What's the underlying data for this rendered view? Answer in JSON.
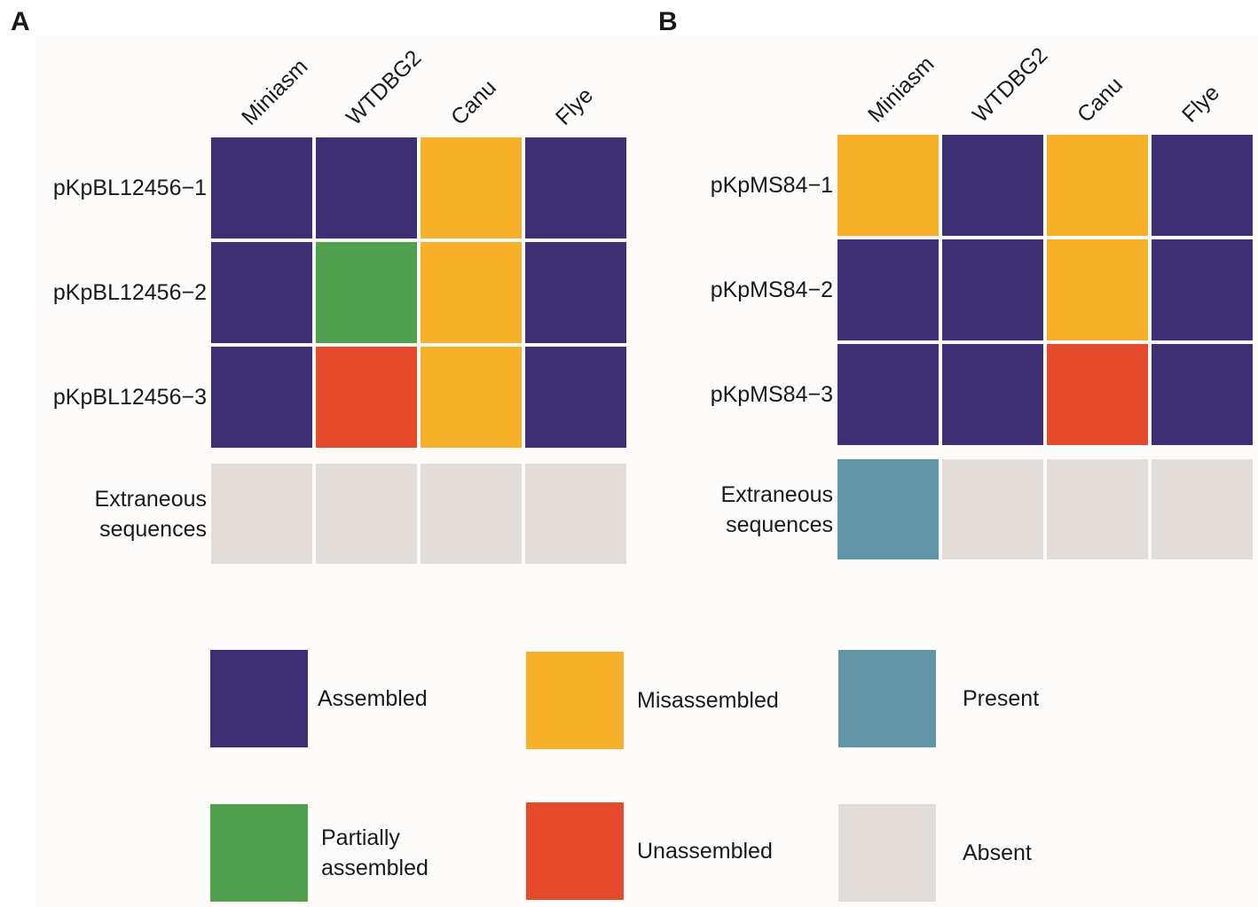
{
  "colors": {
    "Assembled": "#3d2f74",
    "Misassembled": "#f6b02a",
    "Partially assembled": "#4fa04f",
    "Unassembled": "#e64a2c",
    "Present": "#6094a6",
    "Absent": "#e2ddd9"
  },
  "chart_data": [
    {
      "type": "heatmap",
      "panel": "A",
      "columns": [
        "Miniasm",
        "WTDBG2",
        "Canu",
        "Flye"
      ],
      "rows": [
        {
          "label": "pKpBL12456−1",
          "values": [
            "Assembled",
            "Assembled",
            "Misassembled",
            "Assembled"
          ]
        },
        {
          "label": "pKpBL12456−2",
          "values": [
            "Assembled",
            "Partially assembled",
            "Misassembled",
            "Assembled"
          ]
        },
        {
          "label": "pKpBL12456−3",
          "values": [
            "Assembled",
            "Unassembled",
            "Misassembled",
            "Assembled"
          ]
        }
      ],
      "extraneous": {
        "label_line1": "Extraneous",
        "label_line2": "sequences",
        "values": [
          "Absent",
          "Absent",
          "Absent",
          "Absent"
        ]
      }
    },
    {
      "type": "heatmap",
      "panel": "B",
      "columns": [
        "Miniasm",
        "WTDBG2",
        "Canu",
        "Flye"
      ],
      "rows": [
        {
          "label": "pKpMS84−1",
          "values": [
            "Misassembled",
            "Assembled",
            "Misassembled",
            "Assembled"
          ]
        },
        {
          "label": "pKpMS84−2",
          "values": [
            "Assembled",
            "Assembled",
            "Misassembled",
            "Assembled"
          ]
        },
        {
          "label": "pKpMS84−3",
          "values": [
            "Assembled",
            "Assembled",
            "Unassembled",
            "Assembled"
          ]
        }
      ],
      "extraneous": {
        "label_line1": "Extraneous",
        "label_line2": "sequences",
        "values": [
          "Present",
          "Absent",
          "Absent",
          "Absent"
        ]
      }
    }
  ],
  "legend": [
    {
      "key": "Assembled",
      "line1": "Assembled",
      "line2": ""
    },
    {
      "key": "Misassembled",
      "line1": "Misassembled",
      "line2": ""
    },
    {
      "key": "Present",
      "line1": "Present",
      "line2": ""
    },
    {
      "key": "Partially assembled",
      "line1": "Partially",
      "line2": "assembled"
    },
    {
      "key": "Unassembled",
      "line1": "Unassembled",
      "line2": ""
    },
    {
      "key": "Absent",
      "line1": "Absent",
      "line2": ""
    }
  ]
}
